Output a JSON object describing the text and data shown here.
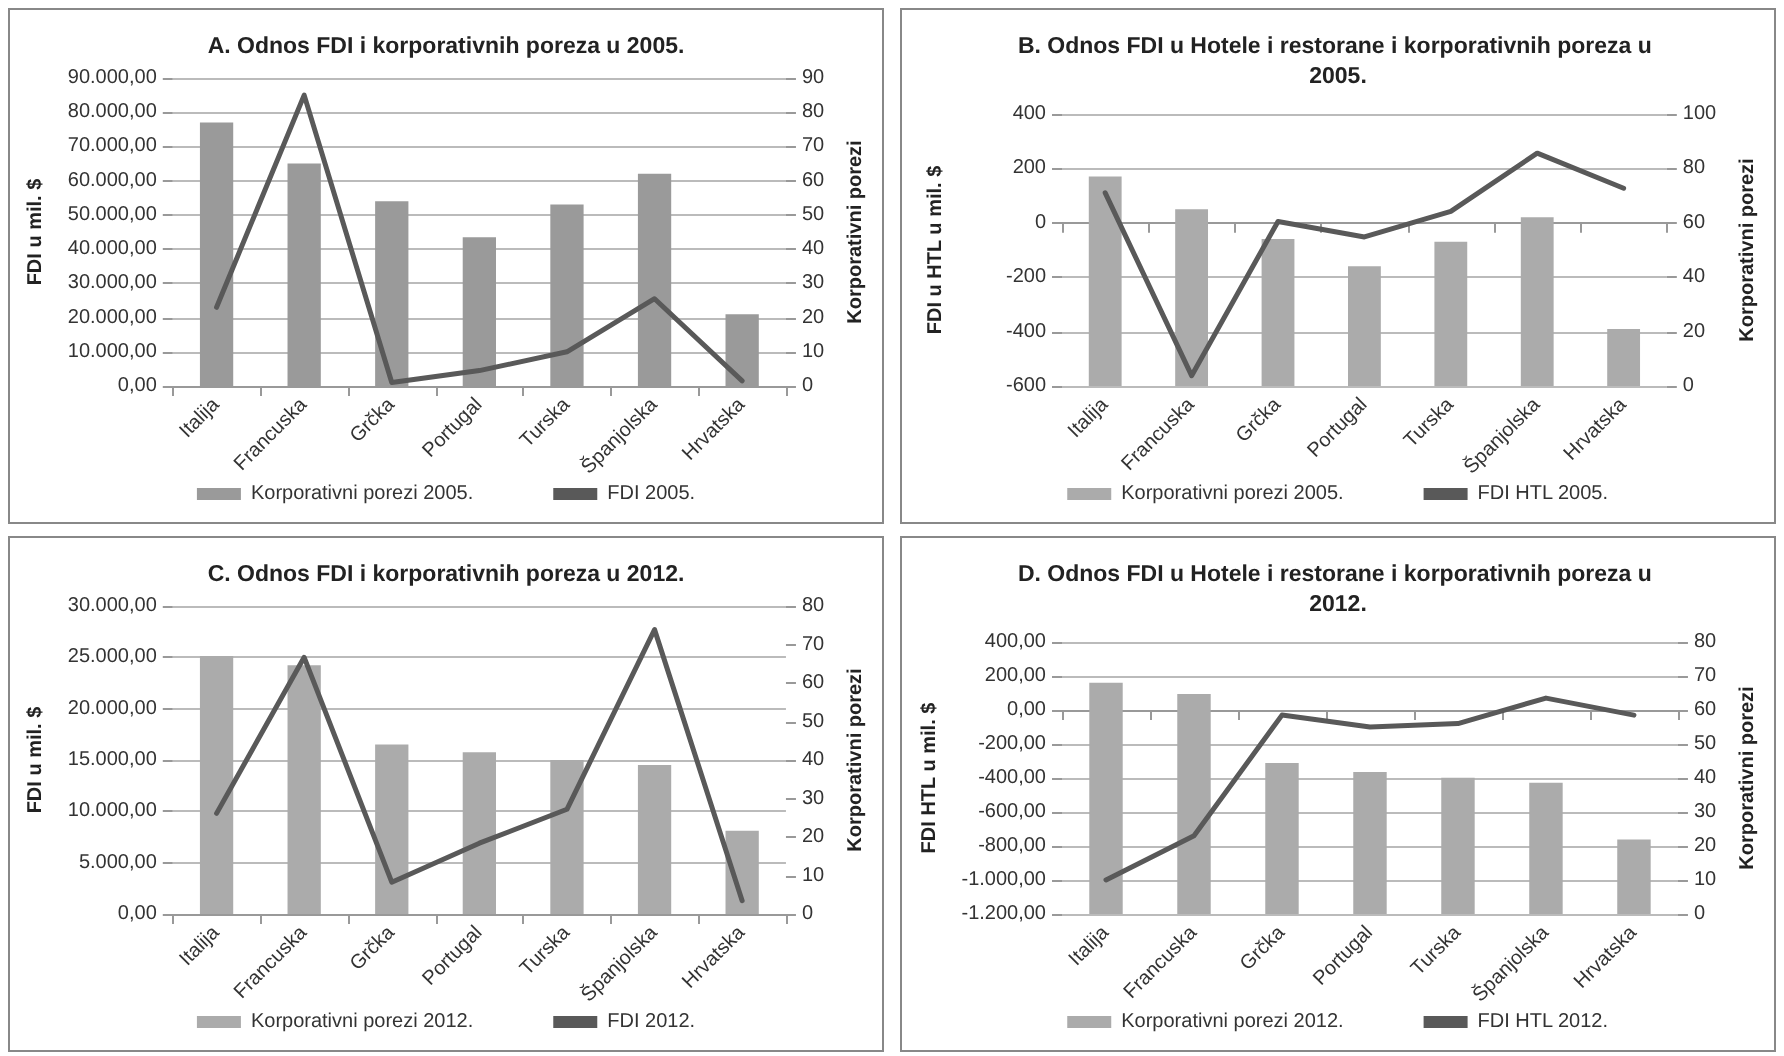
{
  "chart_data": [
    {
      "type": "bar",
      "title": "A. Odnos FDI i korporativnih poreza u 2005.",
      "ylabel": "FDI u mil. $",
      "y2label": "Korporativni porezi",
      "categories": [
        "Italija",
        "Francuska",
        "Grčka",
        "Portugal",
        "Turska",
        "Španjolska",
        "Hrvatska"
      ],
      "series": [
        {
          "name": "Korporativni porezi 2005.",
          "axis": "y2",
          "color": "#9a9a9a",
          "values": [
            77,
            65,
            54,
            43.5,
            53,
            62,
            21
          ]
        },
        {
          "name": "FDI 2005.",
          "type": "line",
          "axis": "y",
          "color": "#595959",
          "values": [
            23000,
            85000,
            1000,
            4500,
            10000,
            25500,
            1500
          ]
        }
      ],
      "ylim": [
        0,
        90000
      ],
      "yticks": [
        {
          "value": 0,
          "label": "0,00"
        },
        {
          "value": 10000,
          "label": "10.000,00"
        },
        {
          "value": 20000,
          "label": "20.000,00"
        },
        {
          "value": 30000,
          "label": "30.000,00"
        },
        {
          "value": 40000,
          "label": "40.000,00"
        },
        {
          "value": 50000,
          "label": "50.000,00"
        },
        {
          "value": 60000,
          "label": "60.000,00"
        },
        {
          "value": 70000,
          "label": "70.000,00"
        },
        {
          "value": 80000,
          "label": "80.000,00"
        },
        {
          "value": 90000,
          "label": "90.000,00"
        }
      ],
      "y2lim": [
        0,
        90
      ],
      "y2ticks": [
        0,
        10,
        20,
        30,
        40,
        50,
        60,
        70,
        80,
        90
      ],
      "grid": "y",
      "legend": "bottom",
      "marker": "none",
      "line_style": "solid"
    },
    {
      "type": "bar",
      "title": "B. Odnos FDI u Hotele i restorane i korporativnih poreza u 2005.",
      "ylabel": "FDI u HTL u mil. $",
      "y2label": "Korporativni porezi",
      "categories": [
        "Italija",
        "Francuska",
        "Grčka",
        "Portugal",
        "Turska",
        "Španjolska",
        "Hrvatska"
      ],
      "series": [
        {
          "name": "Korporativni porezi 2005.",
          "axis": "y2",
          "color": "#ababab",
          "values": [
            77,
            65,
            54,
            44,
            53,
            62,
            21
          ]
        },
        {
          "name": "FDI HTL 2005.",
          "type": "line",
          "axis": "y",
          "color": "#595959",
          "values": [
            110,
            -562,
            5,
            -52,
            42,
            256,
            127
          ]
        }
      ],
      "ylim": [
        -600,
        400
      ],
      "yticks": [
        -600,
        -400,
        -200,
        0,
        200,
        400
      ],
      "y2lim": [
        0,
        100
      ],
      "y2ticks": [
        0,
        20,
        40,
        60,
        80,
        100
      ],
      "grid": "y",
      "legend": "bottom",
      "marker": "none",
      "line_style": "solid"
    },
    {
      "type": "bar",
      "title": "C. Odnos FDI i korporativnih poreza u 2012.",
      "ylabel": "FDI u mil. $",
      "y2label": "Korporativni porezi",
      "categories": [
        "Italija",
        "Francuska",
        "Grčka",
        "Portugal",
        "Turska",
        "Španjolska",
        "Hrvatska"
      ],
      "series": [
        {
          "name": "Korporativni porezi 2012.",
          "axis": "y2",
          "color": "#ababab",
          "values": [
            67,
            64.6,
            44,
            42,
            40,
            38.7,
            21.6
          ]
        },
        {
          "name": "FDI 2012.",
          "type": "line",
          "axis": "y",
          "color": "#595959",
          "values": [
            9800,
            25000,
            3100,
            6900,
            10200,
            27700,
            1300
          ]
        }
      ],
      "ylim": [
        0,
        30000
      ],
      "yticks": [
        {
          "value": 0,
          "label": "0,00"
        },
        {
          "value": 5000,
          "label": "5.000,00"
        },
        {
          "value": 10000,
          "label": "10.000,00"
        },
        {
          "value": 15000,
          "label": "15.000,00"
        },
        {
          "value": 20000,
          "label": "20.000,00"
        },
        {
          "value": 25000,
          "label": "25.000,00"
        },
        {
          "value": 30000,
          "label": "30.000,00"
        }
      ],
      "y2lim": [
        0,
        80
      ],
      "y2ticks": [
        0,
        10,
        20,
        30,
        40,
        50,
        60,
        70,
        80
      ],
      "grid": "y",
      "legend": "bottom",
      "marker": "none",
      "line_style": "solid"
    },
    {
      "type": "bar",
      "title": "D. Odnos FDI u Hotele i restorane i korporativnih poreza u 2012.",
      "ylabel": "FDI HTL u mil. $",
      "y2label": "Korporativni porezi",
      "categories": [
        "Italija",
        "Francuska",
        "Grčka",
        "Portugal",
        "Turska",
        "Španjolska",
        "Hrvatska"
      ],
      "series": [
        {
          "name": "Korporativni porezi 2012.",
          "axis": "y2",
          "color": "#ababab",
          "values": [
            68,
            64.7,
            44.4,
            41.8,
            40.1,
            38.6,
            21.9
          ]
        },
        {
          "name": "FDI HTL 2012.",
          "type": "line",
          "axis": "y",
          "color": "#595959",
          "values": [
            -1000,
            -740,
            -30,
            -100,
            -80,
            70,
            -30
          ]
        }
      ],
      "ylim": [
        -1200,
        400
      ],
      "yticks": [
        {
          "value": -1200,
          "label": "-1.200,00"
        },
        {
          "value": -1000,
          "label": "-1.000,00"
        },
        {
          "value": -800,
          "label": "-800,00"
        },
        {
          "value": -600,
          "label": "-600,00"
        },
        {
          "value": -400,
          "label": "-400,00"
        },
        {
          "value": -200,
          "label": "-200,00"
        },
        {
          "value": 0,
          "label": "0,00"
        },
        {
          "value": 200,
          "label": "200,00"
        },
        {
          "value": 400,
          "label": "400,00"
        }
      ],
      "y2lim": [
        0,
        80
      ],
      "y2ticks": [
        0,
        10,
        20,
        30,
        40,
        50,
        60,
        70,
        80
      ],
      "grid": "y",
      "legend": "bottom",
      "marker": "none",
      "line_style": "solid"
    }
  ]
}
